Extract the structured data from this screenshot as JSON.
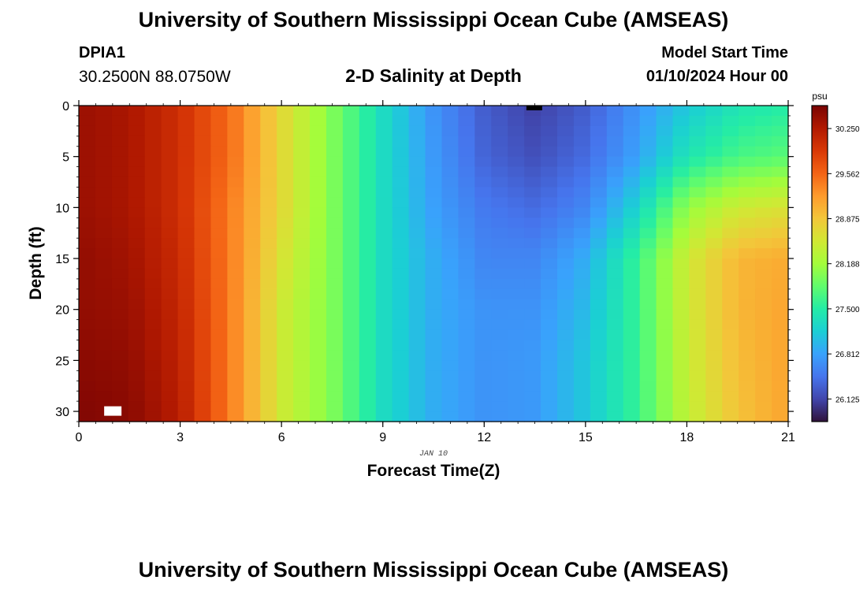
{
  "page": {
    "title": "University of Southern Mississippi Ocean Cube (AMSEAS)",
    "title_repeat": "University of Southern Mississippi Ocean Cube (AMSEAS)",
    "station_id": "DPIA1",
    "station_coords": "30.2500N  88.0750W",
    "subtitle": "2-D Salinity at Depth",
    "model_start_label": "Model Start Time",
    "model_start_value": "01/10/2024 Hour 00"
  },
  "chart_data": {
    "type": "heatmap",
    "title": "2-D Salinity at Depth",
    "xlabel": "Forecast Time(Z)",
    "ylabel": "Depth (ft)",
    "x_sublabel": "JAN 10",
    "xlim": [
      0,
      21
    ],
    "ylim": [
      31,
      0
    ],
    "x_ticks": [
      0,
      3,
      6,
      9,
      12,
      15,
      18,
      21
    ],
    "y_ticks": [
      0,
      5,
      10,
      15,
      20,
      25,
      30
    ],
    "colorbar": {
      "units": "psu",
      "range": [
        25.78,
        30.6
      ],
      "ticks": [
        30.25,
        29.562,
        28.875,
        28.188,
        27.5,
        26.812,
        26.125
      ],
      "tick_labels": [
        "30.250",
        "29.562",
        "28.875",
        "28.188",
        "27.500",
        "26.812",
        "26.125"
      ],
      "colors": [
        "#30123b",
        "#4145ab",
        "#4675ed",
        "#39a2fc",
        "#1bcfd4",
        "#24eca6",
        "#61fc6c",
        "#a4fc3b",
        "#d1e834",
        "#f3c63a",
        "#fe9b2d",
        "#f36315",
        "#d93806",
        "#b11901",
        "#7a0403"
      ]
    },
    "depths_ft": [
      0,
      5,
      10,
      15,
      20,
      25,
      30
    ],
    "hours": [
      0,
      1.5,
      3,
      4.5,
      6,
      7.5,
      9,
      10.5,
      12,
      13.5,
      15,
      16.5,
      18,
      19.5,
      21
    ],
    "salinity_psu": [
      [
        30.4,
        30.3,
        30.0,
        29.5,
        28.7,
        28.0,
        27.3,
        26.7,
        26.3,
        26.1,
        26.3,
        26.7,
        27.1,
        27.4,
        27.5
      ],
      [
        30.4,
        30.3,
        30.0,
        29.5,
        28.7,
        28.0,
        27.3,
        26.75,
        26.35,
        26.2,
        26.4,
        26.8,
        27.4,
        27.7,
        27.8
      ],
      [
        30.4,
        30.3,
        30.0,
        29.4,
        28.7,
        28.0,
        27.3,
        26.8,
        26.5,
        26.4,
        26.6,
        27.2,
        28.1,
        28.5,
        28.6
      ],
      [
        30.45,
        30.35,
        30.05,
        29.4,
        28.6,
        28.0,
        27.3,
        26.9,
        26.6,
        26.6,
        26.9,
        27.6,
        28.5,
        29.0,
        29.1
      ],
      [
        30.45,
        30.4,
        30.1,
        29.4,
        28.5,
        28.0,
        27.3,
        26.9,
        26.7,
        26.7,
        27.0,
        27.6,
        28.5,
        29.0,
        29.15
      ],
      [
        30.5,
        30.45,
        30.15,
        29.4,
        28.5,
        28.0,
        27.3,
        26.9,
        26.7,
        26.75,
        27.1,
        27.6,
        28.45,
        28.95,
        29.15
      ],
      [
        30.55,
        30.5,
        30.2,
        29.4,
        28.5,
        28.0,
        27.3,
        26.9,
        26.7,
        26.75,
        27.1,
        27.6,
        28.4,
        28.9,
        29.15
      ]
    ],
    "plot_markers": [
      "top edge marker (black)",
      "bottom-left marker (white)"
    ]
  }
}
